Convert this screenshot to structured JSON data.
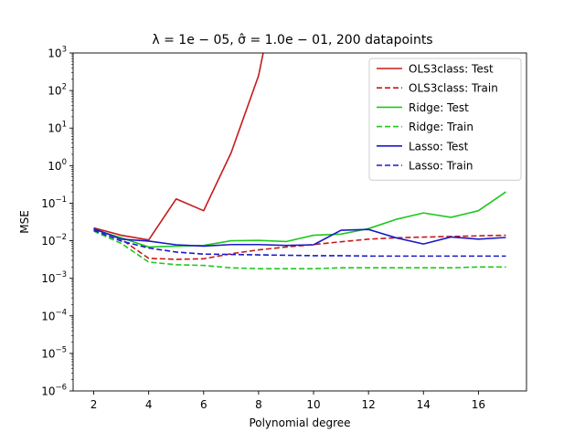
{
  "chart_data": {
    "type": "line",
    "title": "λ = 1e − 05, σ̂ = 1.0e − 01, 200 datapoints",
    "xlabel": "Polynomial degree",
    "ylabel": "MSE",
    "yscale": "log",
    "xlim": [
      1.25,
      17.75
    ],
    "ylim": [
      1e-06,
      1000
    ],
    "xticks": [
      2,
      4,
      6,
      8,
      10,
      12,
      14,
      16
    ],
    "xtick_labels": [
      "2",
      "4",
      "6",
      "8",
      "10",
      "12",
      "14",
      "16"
    ],
    "yticks": [
      -6,
      -5,
      -4,
      -3,
      -2,
      -1,
      0,
      1,
      2,
      3
    ],
    "ytick_labels": [
      {
        "base": "10",
        "exp": "−6"
      },
      {
        "base": "10",
        "exp": "−5"
      },
      {
        "base": "10",
        "exp": "−4"
      },
      {
        "base": "10",
        "exp": "−3"
      },
      {
        "base": "10",
        "exp": "−2"
      },
      {
        "base": "10",
        "exp": "−1"
      },
      {
        "base": "10",
        "exp": "0"
      },
      {
        "base": "10",
        "exp": "1"
      },
      {
        "base": "10",
        "exp": "2"
      },
      {
        "base": "10",
        "exp": "3"
      }
    ],
    "grid": false,
    "legend_position": "upper right",
    "x": [
      2,
      3,
      4,
      5,
      6,
      7,
      8,
      9,
      10,
      11,
      12,
      13,
      14,
      15,
      16,
      17
    ],
    "series": [
      {
        "name": "OLS3class: Test",
        "color": "#c61a1a",
        "dash": "solid",
        "values": [
          0.022,
          0.014,
          0.0105,
          0.13,
          0.063,
          2.2,
          250,
          1000000.0,
          null,
          null,
          null,
          null,
          null,
          null,
          null,
          null
        ]
      },
      {
        "name": "OLS3class: Train",
        "color": "#c61a1a",
        "dash": "dashed",
        "values": [
          0.021,
          0.011,
          0.0034,
          0.0032,
          0.0033,
          0.0045,
          0.0057,
          0.0068,
          0.0079,
          0.0094,
          0.011,
          0.012,
          0.0125,
          0.013,
          0.0135,
          0.014
        ]
      },
      {
        "name": "Ridge: Test",
        "color": "#1ec81e",
        "dash": "solid",
        "values": [
          0.02,
          0.012,
          0.0068,
          0.0072,
          0.0075,
          0.01,
          0.0102,
          0.0095,
          0.014,
          0.015,
          0.021,
          0.037,
          0.055,
          0.042,
          0.063,
          0.2
        ]
      },
      {
        "name": "Ridge: Train",
        "color": "#1ec81e",
        "dash": "dashed",
        "values": [
          0.018,
          0.0085,
          0.0027,
          0.0023,
          0.0022,
          0.0019,
          0.0018,
          0.0018,
          0.0018,
          0.0019,
          0.0019,
          0.0019,
          0.0019,
          0.0019,
          0.002,
          0.002
        ]
      },
      {
        "name": "Lasso: Test",
        "color": "#1a1ac8",
        "dash": "solid",
        "values": [
          0.021,
          0.011,
          0.0098,
          0.0078,
          0.0072,
          0.0079,
          0.0079,
          0.0075,
          0.0078,
          0.019,
          0.02,
          0.012,
          0.0082,
          0.0126,
          0.011,
          0.0122
        ]
      },
      {
        "name": "Lasso: Train",
        "color": "#1a1ac8",
        "dash": "dashed",
        "values": [
          0.019,
          0.0098,
          0.0064,
          0.005,
          0.0044,
          0.0043,
          0.0042,
          0.0041,
          0.004,
          0.004,
          0.0039,
          0.0039,
          0.0039,
          0.0039,
          0.0039,
          0.0039
        ]
      }
    ]
  }
}
